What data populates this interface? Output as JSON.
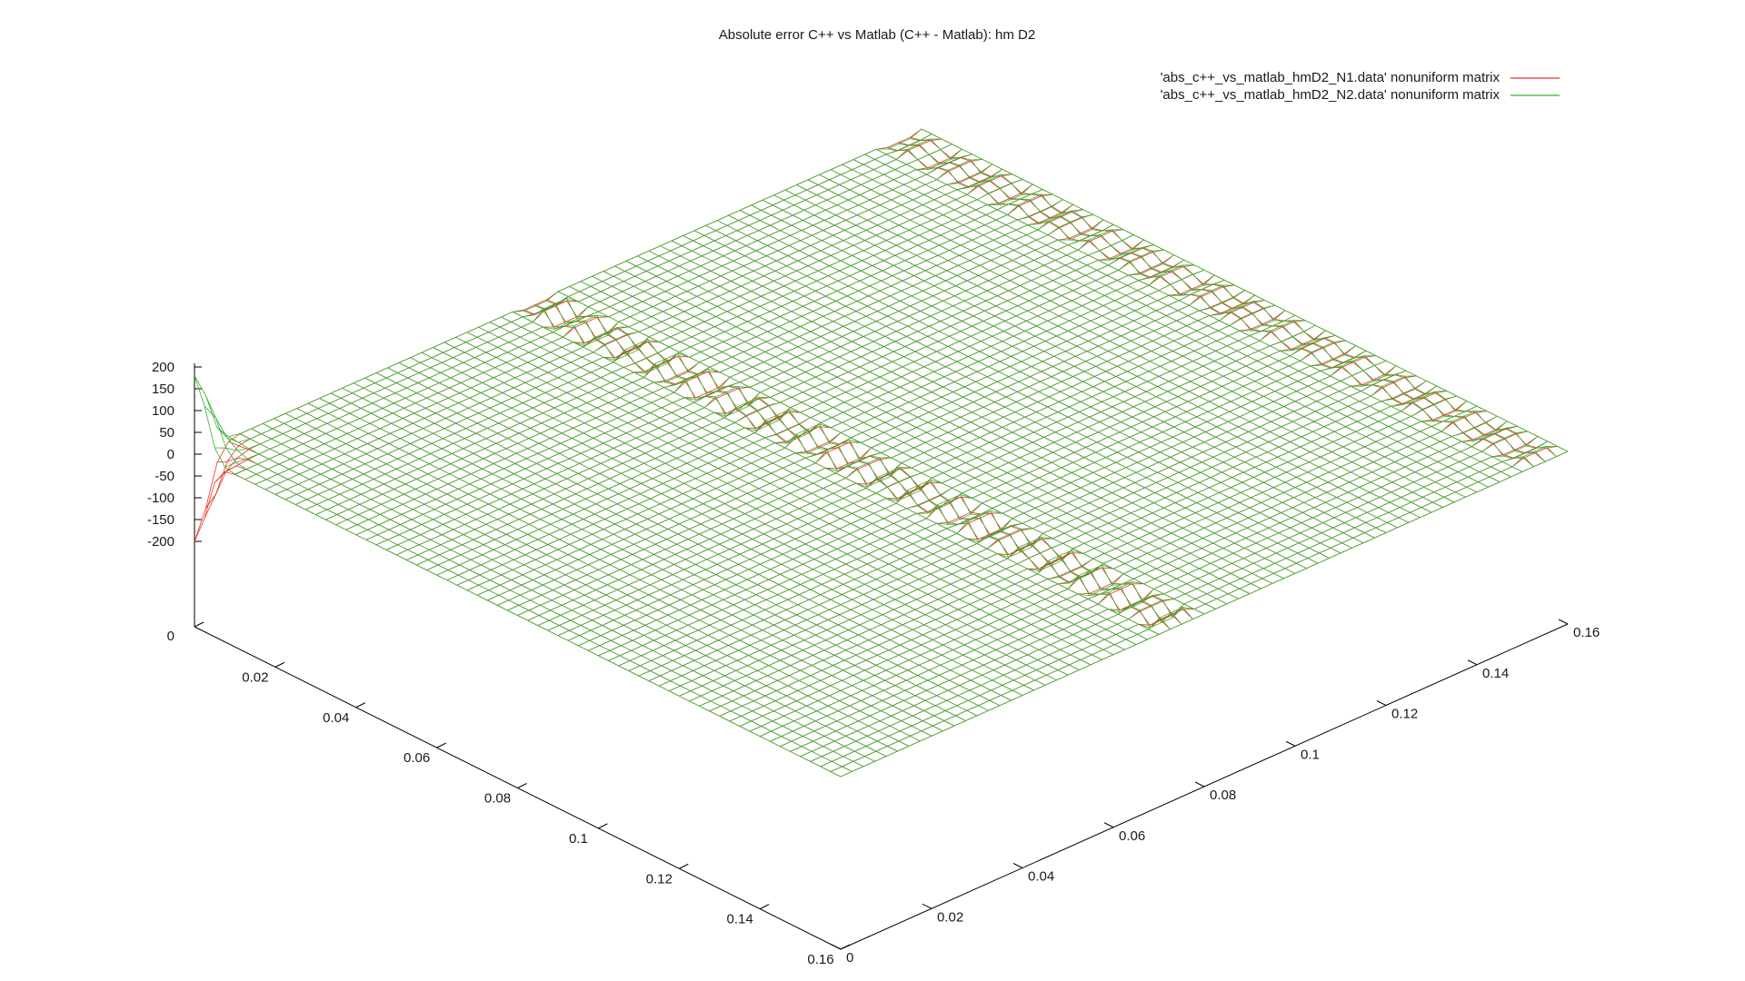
{
  "chart_data": {
    "type": "surface",
    "title": "Absolute error C++ vs Matlab (C++ - Matlab): hm D2",
    "xlabel": "",
    "ylabel": "",
    "zlabel": "",
    "x_range": [
      0,
      0.16
    ],
    "y_range": [
      0,
      0.16
    ],
    "zlim": [
      -200,
      200
    ],
    "x_ticks": [
      "0",
      "0.02",
      "0.04",
      "0.06",
      "0.08",
      "0.1",
      "0.12",
      "0.14",
      "0.16"
    ],
    "y_ticks": [
      "0",
      "0.02",
      "0.04",
      "0.06",
      "0.08",
      "0.1",
      "0.12",
      "0.14",
      "0.16"
    ],
    "z_ticks": [
      "-200",
      "-150",
      "-100",
      "-50",
      "0",
      "50",
      "100",
      "150",
      "200"
    ],
    "base_label": "0",
    "grid": "mesh",
    "legend_position": "top-right",
    "series": [
      {
        "name": "'abs_c++_vs_matlab_hmD2_N1.data' nonuniform matrix",
        "color": "#e8332a",
        "value_at_flat_region": 0,
        "corner_peak_z": -200,
        "corner_peak_x": 0.16,
        "corner_peak_y": 0.0
      },
      {
        "name": "'abs_c++_vs_matlab_hmD2_N2.data' nonuniform matrix",
        "color": "#33b333",
        "value_at_flat_region": 0,
        "corner_peak_z": 180,
        "corner_peak_x": 0.16,
        "corner_peak_y": 0.0
      }
    ]
  }
}
